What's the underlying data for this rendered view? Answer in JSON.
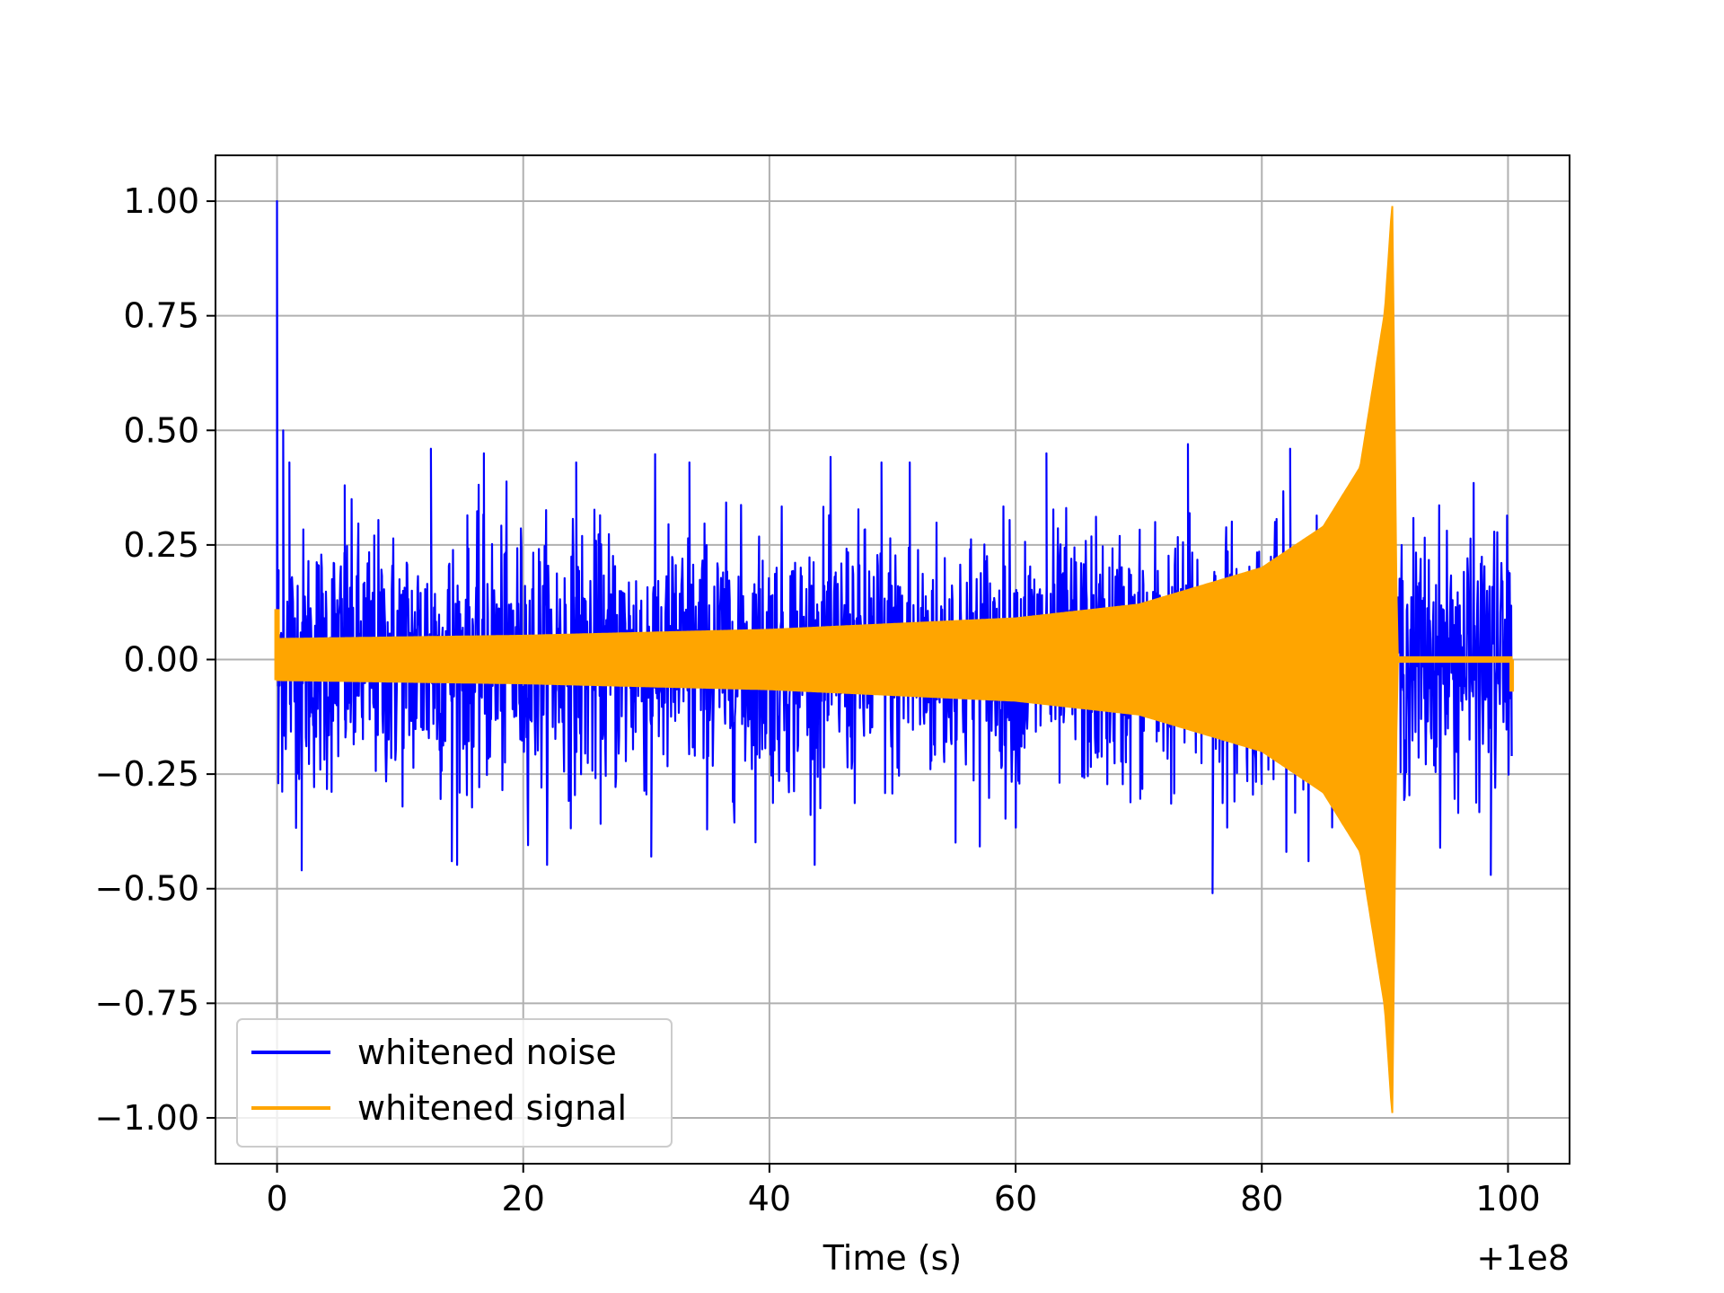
{
  "chart_data": {
    "type": "line",
    "xlabel": "Time (s)",
    "ylabel": "",
    "x_offset_label": "+1e8",
    "xlim": [
      -5,
      105
    ],
    "ylim": [
      -1.1,
      1.1
    ],
    "x_ticks": [
      0,
      20,
      40,
      60,
      80,
      100
    ],
    "x_tick_labels": [
      "0",
      "20",
      "40",
      "60",
      "80",
      "100"
    ],
    "y_ticks": [
      1.0,
      0.75,
      0.5,
      0.25,
      0.0,
      -0.25,
      -0.5,
      -0.75,
      -1.0
    ],
    "y_tick_labels": [
      "1.00",
      "0.75",
      "0.50",
      "0.25",
      "0.00",
      "−0.25",
      "−0.50",
      "−0.75",
      "−1.00"
    ],
    "grid": true,
    "legend_position": "lower-left",
    "series": [
      {
        "name": "whitened noise",
        "color": "#0000ff",
        "x_range": [
          0,
          100.3
        ],
        "typical_amplitude": 0.28,
        "points": [
          [
            0.0,
            1.0
          ],
          [
            0.1,
            -0.27
          ],
          [
            0.5,
            0.5
          ],
          [
            1.0,
            0.43
          ],
          [
            2.0,
            -0.46
          ],
          [
            5.5,
            0.38
          ],
          [
            12.5,
            0.46
          ],
          [
            14.2,
            -0.44
          ],
          [
            16.8,
            0.45
          ],
          [
            24.3,
            0.43
          ],
          [
            30.4,
            -0.43
          ],
          [
            33.5,
            0.43
          ],
          [
            49.1,
            0.43
          ],
          [
            51.4,
            0.43
          ],
          [
            62.5,
            0.45
          ],
          [
            74.0,
            0.47
          ],
          [
            76.0,
            -0.51
          ],
          [
            82.3,
            0.46
          ],
          [
            98.6,
            -0.47
          ]
        ]
      },
      {
        "name": "whitened signal",
        "color": "#ffa500",
        "envelope": {
          "t_start": 0.0,
          "t_merger": 90.6,
          "t_end": 100.3,
          "start_amplitude": 0.045,
          "peak_amplitude": 1.0,
          "ringdown_amplitude": 0.005,
          "initial_spike": 0.11,
          "final_step": -0.07
        },
        "points": [
          [
            0.0,
            0.045
          ],
          [
            20.0,
            0.052
          ],
          [
            40.0,
            0.065
          ],
          [
            60.0,
            0.09
          ],
          [
            70.0,
            0.12
          ],
          [
            80.0,
            0.2
          ],
          [
            85.0,
            0.29
          ],
          [
            88.0,
            0.42
          ],
          [
            90.0,
            0.76
          ],
          [
            90.6,
            1.0
          ],
          [
            91.0,
            0.005
          ],
          [
            100.3,
            0.005
          ]
        ]
      }
    ]
  }
}
